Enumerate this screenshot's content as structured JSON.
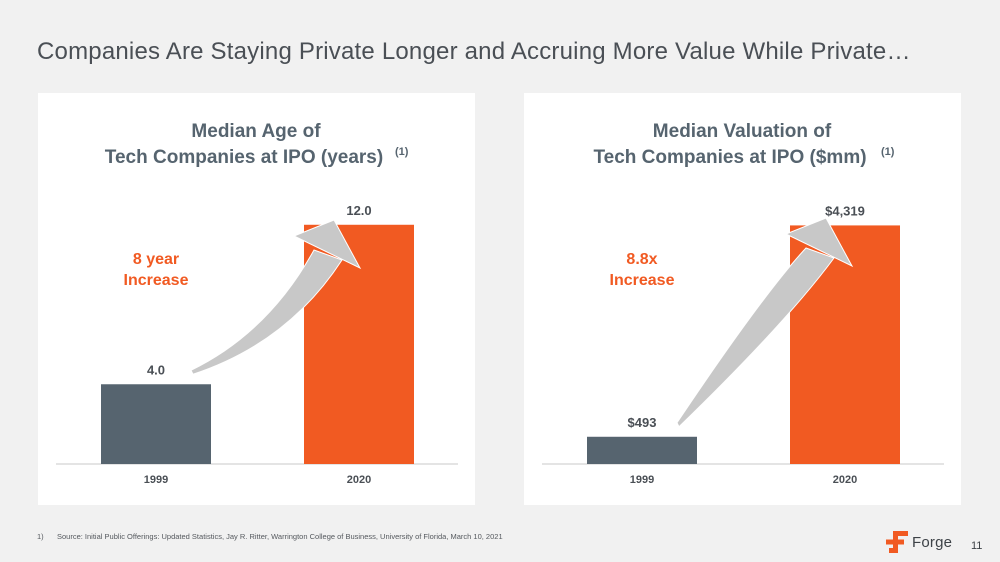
{
  "slide": {
    "title": "Companies Are Staying Private Longer and Accruing More Value While Private…",
    "footnote_number": "1)",
    "footnote_text": "Source: Initial Public Offerings: Updated Statistics, Jay R. Ritter, Warrington College of Business, University of Florida,  March 10, 2021",
    "logo_text": "Forge",
    "page_number": "11"
  },
  "colors": {
    "bar_1999": "#56646f",
    "bar_2020": "#f15a22",
    "arrow": "#c8c8c8",
    "accent": "#f15a22"
  },
  "chart_data": [
    {
      "type": "bar",
      "title_line1": "Median Age of",
      "title_line2": "Tech Companies at IPO (years)",
      "title_superscript": "(1)",
      "categories": [
        "1999",
        "2020"
      ],
      "values": [
        4.0,
        12.0
      ],
      "value_labels": [
        "4.0",
        "12.0"
      ],
      "annotation_line1": "8 year",
      "annotation_line2": "Increase",
      "ylim": [
        0,
        15.6
      ]
    },
    {
      "type": "bar",
      "title_line1": "Median Valuation of",
      "title_line2": "Tech Companies at IPO ($mm)",
      "title_superscript": "(1)",
      "categories": [
        "1999",
        "2020"
      ],
      "values": [
        493,
        4319
      ],
      "value_labels": [
        "$493",
        "$4,319"
      ],
      "annotation_line1": "8.8x",
      "annotation_line2": "Increase",
      "ylim": [
        0,
        5630
      ]
    }
  ]
}
